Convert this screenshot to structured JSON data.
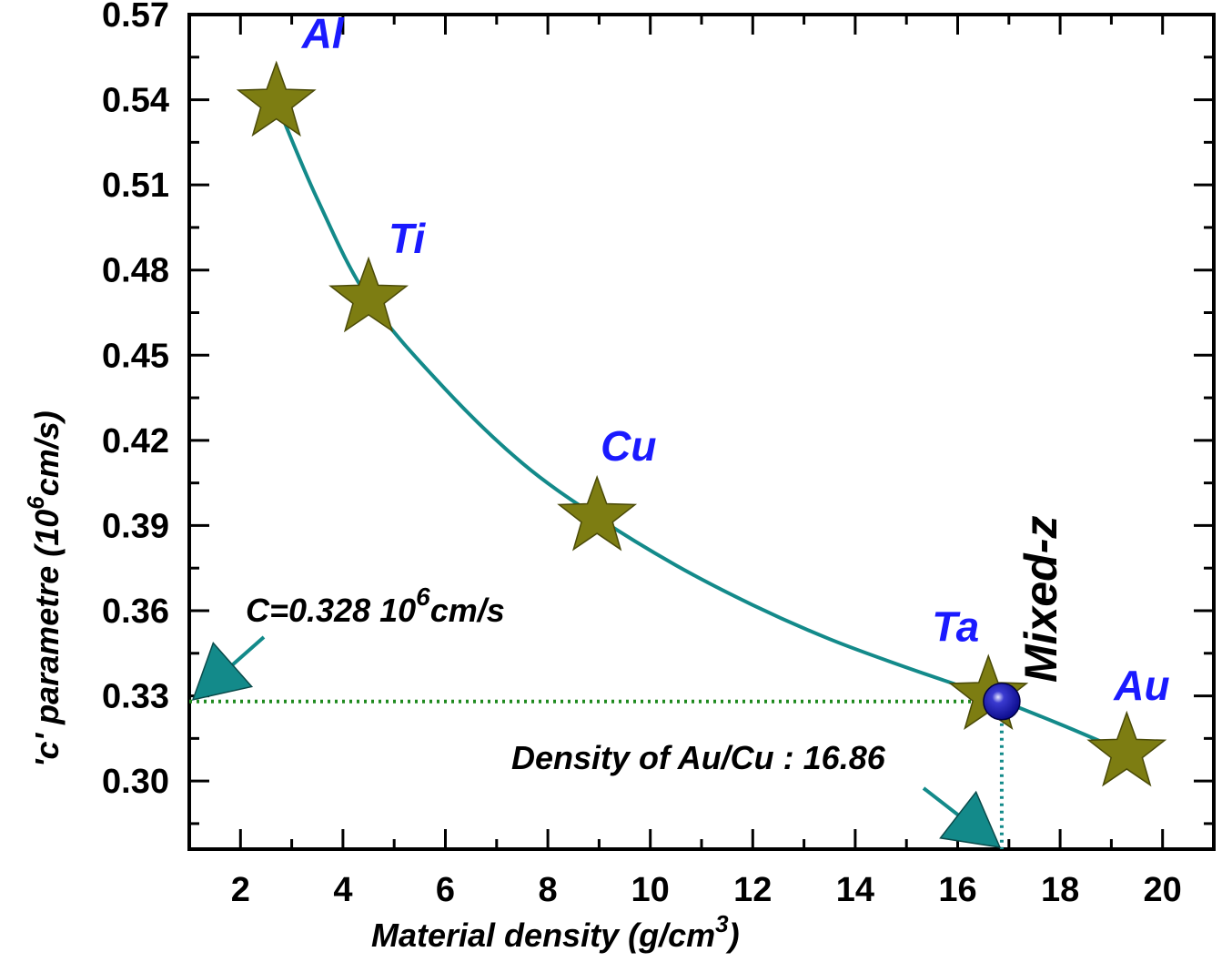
{
  "chart_data": {
    "type": "scatter",
    "xlabel": "Material density (g/cm",
    "xlabel_sup": "3",
    "xlabel_end": ")",
    "ylabel": "'c' parametre (10",
    "ylabel_sup": "6",
    "ylabel_end": "cm/s)",
    "xlim": [
      1,
      21
    ],
    "ylim": [
      0.276,
      0.57
    ],
    "x_ticks": [
      2,
      4,
      6,
      8,
      10,
      12,
      14,
      16,
      18,
      20
    ],
    "y_ticks": [
      0.3,
      0.33,
      0.36,
      0.39,
      0.42,
      0.45,
      0.48,
      0.51,
      0.54,
      0.57
    ],
    "x_tick_labels": [
      "2",
      "4",
      "6",
      "8",
      "10",
      "12",
      "14",
      "16",
      "18",
      "20"
    ],
    "y_tick_labels": [
      "0.30",
      "0.33",
      "0.36",
      "0.39",
      "0.42",
      "0.45",
      "0.48",
      "0.51",
      "0.54",
      "0.57"
    ],
    "points": [
      {
        "label": "Al",
        "x": 2.7,
        "y": 0.539
      },
      {
        "label": "Ti",
        "x": 4.5,
        "y": 0.47
      },
      {
        "label": "Cu",
        "x": 8.96,
        "y": 0.393
      },
      {
        "label": "Ta",
        "x": 16.6,
        "y": 0.33
      },
      {
        "label": "Au",
        "x": 19.3,
        "y": 0.31
      }
    ],
    "mixed_point": {
      "label": "Mixed-z",
      "x": 16.86,
      "y": 0.328
    },
    "fit_curve": {
      "x": [
        2.7,
        3.5,
        4.5,
        6,
        7.5,
        8.96,
        10.5,
        12,
        13.5,
        15,
        16.6,
        18,
        19.3
      ],
      "y": [
        0.539,
        0.505,
        0.47,
        0.438,
        0.412,
        0.393,
        0.376,
        0.362,
        0.35,
        0.34,
        0.33,
        0.32,
        0.31
      ]
    },
    "annotations": {
      "c_value_text": "C=0.328 10",
      "c_value_sup": "6",
      "c_value_end": "cm/s",
      "density_text": "Density of Au/Cu : 16.86"
    },
    "colors": {
      "curve": "#138a8a",
      "star": "#7d7d12",
      "dotted_h": "#1f8a1f",
      "dotted_v": "#138a8a",
      "arrow": "#138a8a",
      "point_label": "#1a1aff",
      "mixed_point": "#0a0a8a"
    }
  }
}
